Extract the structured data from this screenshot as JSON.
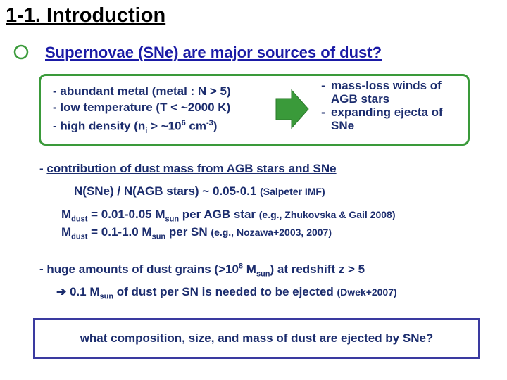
{
  "title": "1-1. Introduction",
  "heading": "Supernovae (SNe) are major sources of dust?",
  "conditions": [
    [
      "- abundant metal (metal : N > 5)"
    ],
    [
      "- low temperature (T < ~2000 K)"
    ],
    [
      "- high density (n",
      {
        "sub": "i"
      },
      " > ~10",
      {
        "sup": "6"
      },
      " cm",
      {
        "sup": "-3"
      },
      ")"
    ]
  ],
  "sources": [
    {
      "marker": "-",
      "text": "mass-loss winds of AGB stars"
    },
    {
      "marker": "-",
      "text": "expanding ejecta of SNe"
    }
  ],
  "contribution": {
    "marker": "-",
    "parts": [
      "contribution of dust mass from AGB stars and SNe"
    ]
  },
  "ratio": [
    "N(SNe) / N(AGB stars) ~ 0.05-0.1 ",
    {
      "small": "(Salpeter IMF)"
    }
  ],
  "mass_agb": [
    "M",
    {
      "sub": "dust"
    },
    " = 0.01-0.05 M",
    {
      "sub": "sun"
    },
    " per AGB star ",
    {
      "small": "(e.g., Zhukovska & Gail 2008)"
    }
  ],
  "mass_sn": [
    "M",
    {
      "sub": "dust"
    },
    " = 0.1-1.0 M",
    {
      "sub": "sun"
    },
    " per SN ",
    {
      "small": "(e.g., Nozawa+2003, 2007)"
    }
  ],
  "huge": {
    "marker": "-",
    "parts": [
      "huge amounts of dust grains (>10",
      {
        "sup": "8"
      },
      " M",
      {
        "sub": "sun"
      },
      ") at redshift z > 5"
    ]
  },
  "needed": [
    "➔ 0.1 M",
    {
      "sub": "sun"
    },
    " of dust per SN is needed to be ejected ",
    {
      "small": "(Dwek+2007)"
    }
  ],
  "question": "what composition, size, and mass of dust are ejected by SNe?"
}
